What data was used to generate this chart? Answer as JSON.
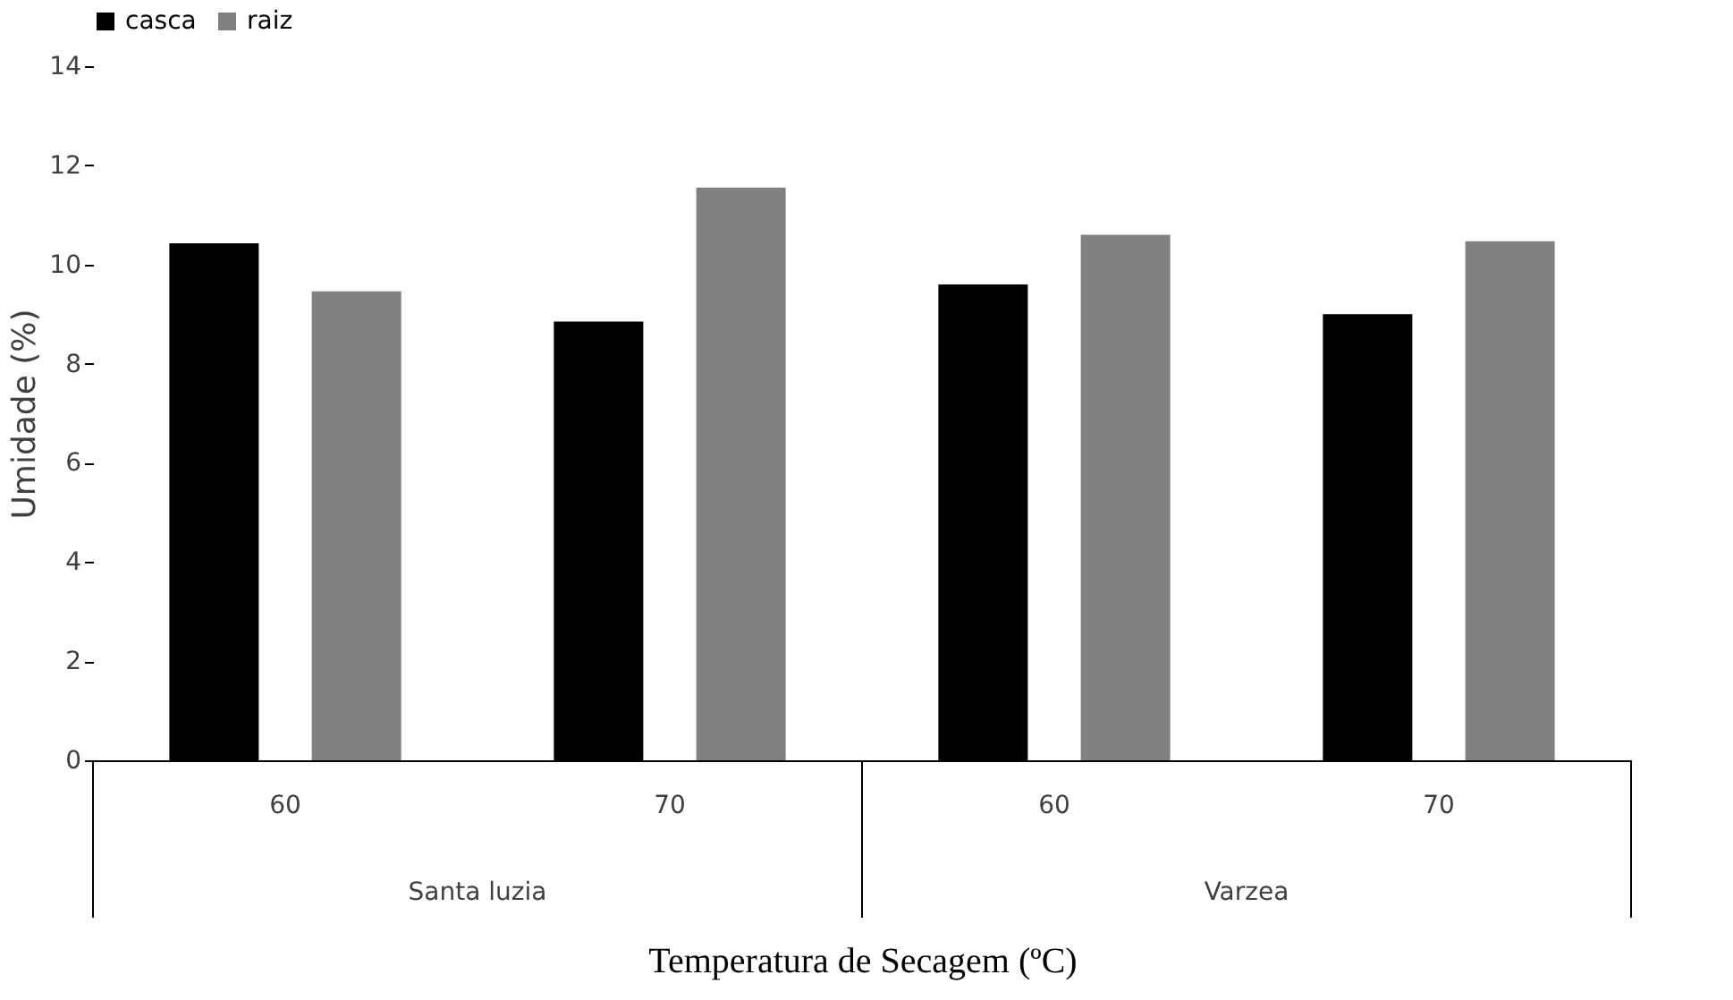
{
  "chart_data": {
    "type": "bar",
    "xlabel": "Temperatura de Secagem (ºC)",
    "ylabel": "Umidade (%)",
    "categories": [
      "60",
      "70",
      "60",
      "70"
    ],
    "series": [
      {
        "name": "casca",
        "color": "#000000",
        "values": [
          10.43,
          8.85,
          9.6,
          9.0
        ]
      },
      {
        "name": "raiz",
        "color": "#808080",
        "values": [
          9.46,
          11.55,
          10.6,
          10.47
        ]
      }
    ],
    "ylim": [
      0,
      14
    ],
    "yticks": [
      0,
      2,
      4,
      6,
      8,
      10,
      12,
      14
    ],
    "grid": false,
    "legend": "top",
    "annotations": [
      "Santa luzia",
      "Varzea"
    ]
  }
}
